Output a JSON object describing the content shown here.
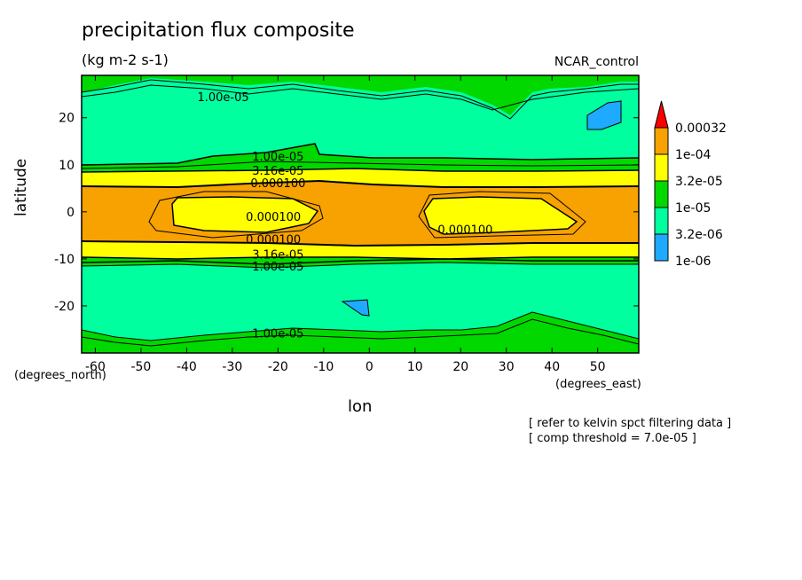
{
  "chart_data": {
    "type": "contour",
    "title": "precipitation flux composite",
    "units": "(kg m-2 s-1)",
    "run_label": "NCAR_control",
    "xlabel": "lon",
    "ylabel": "latitude",
    "x_unit_label": "(degrees_east)",
    "y_unit_label": "(degrees_north)",
    "xlim": [
      -63,
      59
    ],
    "ylim": [
      -30,
      29
    ],
    "x_ticks": [
      -60,
      -50,
      -40,
      -30,
      -20,
      -10,
      0,
      10,
      20,
      30,
      40,
      50
    ],
    "x_tick_labels": [
      "-60",
      "-50",
      "-40",
      "-30",
      "-20",
      "-10",
      "0",
      "10",
      "20",
      "30",
      "40",
      "50"
    ],
    "y_ticks": [
      20,
      10,
      0,
      -10,
      -20
    ],
    "y_tick_labels": [
      "20",
      "10",
      "0",
      "-10",
      "-20"
    ],
    "colorbar": {
      "labels": [
        "0.00032",
        "1e-04",
        "3.2e-05",
        "1e-05",
        "3.2e-06",
        "1e-06"
      ],
      "colors": [
        "#f7a200",
        "#ffff00",
        "#00d800",
        "#00ff9f",
        "#1eaaff"
      ],
      "extend_color": "#ff0000"
    },
    "contour_labels": [
      {
        "text": "1.00e-05",
        "lon": -32,
        "lat": 24.5
      },
      {
        "text": "1.00e-05",
        "lon": -20,
        "lat": 11.8
      },
      {
        "text": "3.16e-05",
        "lon": -20,
        "lat": 8.8
      },
      {
        "text": "0.000100",
        "lon": -20,
        "lat": 6.2
      },
      {
        "text": "0.000100",
        "lon": -21,
        "lat": -1
      },
      {
        "text": "0.000100",
        "lon": 21,
        "lat": -3.7
      },
      {
        "text": "0.000100",
        "lon": -21,
        "lat": -5.8
      },
      {
        "text": "3.16e-05",
        "lon": -20,
        "lat": -9
      },
      {
        "text": "1.00e-05",
        "lon": -20,
        "lat": -11.5
      },
      {
        "text": "1.00e-05",
        "lon": -20,
        "lat": -25.8
      }
    ],
    "notes": [
      "[ refer to kelvin spct filtering data ]",
      "[ comp threshold = 7.0e-05 ]"
    ]
  }
}
